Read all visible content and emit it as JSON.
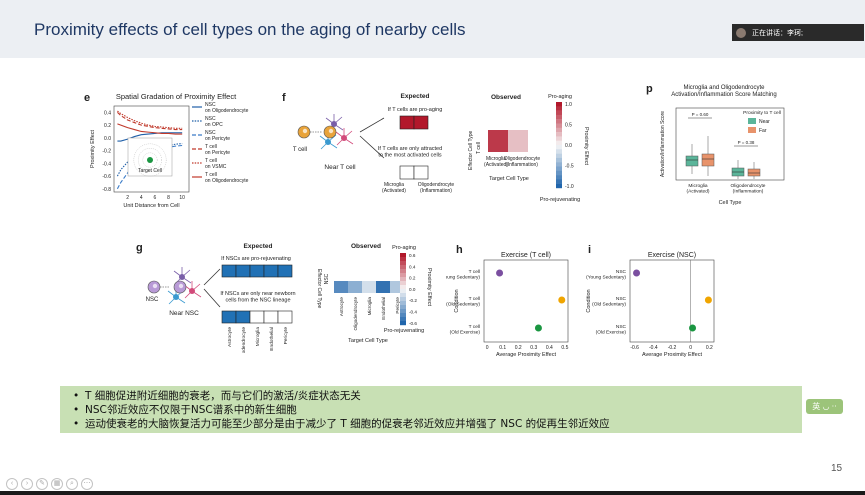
{
  "slide": {
    "title": "Proximity effects of cell types on the aging of nearby cells",
    "page": "15"
  },
  "speaker": {
    "label": "正在讲话：李珂;"
  },
  "bullets": [
    "T 细胞促进附近细胞的衰老，而与它们的激活/炎症状态无关",
    "NSC邻近效应不仅限于NSC谱系中的新生细胞",
    "运动使衰老的大脑恢复活力可能至少部分是由于减少了 T 细胞的促衰老邻近效应并增强了 NSC 的促再生邻近效应"
  ],
  "colors": {
    "pro_aging": "#b2182b",
    "pro_rejuvenating": "#2166ac",
    "exercise_young": "#7b4fa0",
    "exercise_old_sed": "#f0a500",
    "exercise_old_ex": "#1a9641",
    "near": "#5bb59a",
    "far": "#e8936b"
  },
  "panels": {
    "e": {
      "letter": "e",
      "title": "Spatial Gradation of Proximity Effect",
      "xlabel": "Unit Distance from Cell",
      "ylabel": "Proximity Effect",
      "inset_label": "Target Cell",
      "legend": [
        "NSC\non Oligodendrocyte",
        "NSC\non OPC",
        "NSC\non Pericyte",
        "T cell\non Pericyte",
        "T cell\non VSMC",
        "T cell\non Oligodendrocyte"
      ],
      "yticks": [
        "0.4",
        "0.2",
        "0.0",
        "-0.2",
        "-0.4",
        "-0.6",
        "-0.8"
      ],
      "xticks": [
        "2",
        "4",
        "6",
        "8",
        "10"
      ]
    },
    "f": {
      "letter": "f",
      "near_label": "Near T cell",
      "cell_label": "T cell",
      "expected_title": "Expected",
      "expected_a": "If T cells are pro-aging",
      "expected_b": "If T cells are only attracted\nto the most activated cells",
      "col_labels": [
        "Microglia\n(Activated)",
        "Oligodendrocyte\n(Inflammation)"
      ],
      "observed_title": "Observed",
      "observed_row": "T cell",
      "observed_ylabel": "Effector Cell Type",
      "observed_xlabel": "Target Cell Type",
      "obs_cols": [
        "Microglia\n(Activated)",
        "Oligodendrocyte\n(Inflammation)"
      ],
      "cbar_top": "Pro-aging",
      "cbar_bottom": "Pro-rejuvenating",
      "cbar_label": "Proximity Effect",
      "cbar_ticks": [
        "1.0",
        "0.5",
        "0.0",
        "-0.5",
        "-1.0"
      ]
    },
    "g": {
      "letter": "g",
      "near_label": "Near NSC",
      "cell_label": "NSC",
      "expected_title": "Expected",
      "expected_a": "If NSCs are pro-rejuvenating",
      "expected_b": "If NSCs are only near newborn\ncells from the NSC lineage",
      "col_labels": [
        "Astrocyte",
        "Oligodendrocyte",
        "Microglia",
        "Endothelial",
        "Pericyte"
      ],
      "observed_title": "Observed",
      "observed_row": "NSC",
      "observed_ylabel": "Effector Cell Type",
      "observed_xlabel": "Target Cell Type",
      "obs_cols": [
        "Astrocyte",
        "Oligodendrocyte",
        "Microglia",
        "Endothelial",
        "Pericyte"
      ],
      "cbar_top": "Pro-aging",
      "cbar_bottom": "Pro-rejuvenating",
      "cbar_label": "Proximity Effect",
      "cbar_ticks": [
        "0.6",
        "0.4",
        "0.2",
        "0.0",
        "-0.2",
        "-0.4",
        "-0.6"
      ]
    },
    "h": {
      "letter": "h",
      "title": "Exercise (T cell)",
      "xlabel": "Average Proximity Effect",
      "ylabel": "Condition",
      "rows": [
        "T cell\n(Young Sedentary)",
        "T cell\n(Old Sedentary)",
        "T cell\n(Old Exercise)"
      ],
      "xticks": [
        "0",
        "0.1",
        "0.2",
        "0.3",
        "0.4",
        "0.5"
      ]
    },
    "i": {
      "letter": "i",
      "title": "Exercise (NSC)",
      "xlabel": "Average Proximity Effect",
      "ylabel": "Condition",
      "rows": [
        "NSC\n(Young Sedentary)",
        "NSC\n(Old Sedentary)",
        "NSC\n(Old Exercise)"
      ],
      "xticks": [
        "-0.6",
        "-0.4",
        "-0.2",
        "0",
        "0.2"
      ]
    },
    "p": {
      "letter": "p",
      "title": "Microglia and Oligodendrocyte\nActivation/Inflammation Score Matching",
      "ylabel": "Activation/Inflammation Score",
      "xlabel": "Cell Type",
      "legend_title": "Proximity to T cell",
      "legend": [
        "Near",
        "Far"
      ],
      "groups": [
        "Microglia\n(Activated)",
        "Oligodendrocyte\n(Inflammation)"
      ],
      "pvals": [
        "P = 0.60",
        "P = 0.38"
      ]
    }
  },
  "chart_data": [
    {
      "panel": "e",
      "type": "line",
      "title": "Spatial Gradation of Proximity Effect",
      "xlabel": "Unit Distance from Cell",
      "ylabel": "Proximity Effect",
      "xlim": [
        0,
        11
      ],
      "ylim": [
        -0.85,
        0.5
      ],
      "x": [
        0.5,
        1,
        2,
        3,
        4,
        5,
        6,
        7,
        8,
        9,
        10
      ],
      "series": [
        {
          "name": "NSC on Oligodendrocyte",
          "values": [
            -0.05,
            -0.05,
            -0.02,
            0.02,
            0.05,
            0.06,
            0.07,
            0.08,
            0.08,
            0.08,
            0.08
          ]
        },
        {
          "name": "NSC on OPC",
          "values": [
            -0.6,
            -0.5,
            -0.38,
            -0.3,
            -0.25,
            -0.2,
            -0.17,
            -0.14,
            -0.12,
            -0.1,
            -0.09
          ]
        },
        {
          "name": "NSC on Pericyte",
          "values": [
            -0.8,
            -0.7,
            -0.55,
            -0.42,
            -0.33,
            -0.27,
            -0.22,
            -0.18,
            -0.15,
            -0.13,
            -0.12
          ]
        },
        {
          "name": "T cell on Pericyte",
          "values": [
            0.4,
            0.35,
            0.28,
            0.24,
            0.2,
            0.18,
            0.16,
            0.15,
            0.14,
            0.13,
            0.13
          ]
        },
        {
          "name": "T cell on VSMC",
          "values": [
            0.42,
            0.38,
            0.32,
            0.27,
            0.23,
            0.2,
            0.18,
            0.17,
            0.16,
            0.15,
            0.15
          ]
        },
        {
          "name": "T cell on Oligodendrocyte",
          "values": [
            0.22,
            0.2,
            0.16,
            0.13,
            0.1,
            0.09,
            0.08,
            0.07,
            0.07,
            0.06,
            0.06
          ]
        }
      ]
    },
    {
      "panel": "h",
      "type": "scatter",
      "title": "Exercise (T cell)",
      "xlabel": "Average Proximity Effect",
      "ylabel": "Condition",
      "xlim": [
        -0.02,
        0.52
      ],
      "categories": [
        "T cell\n(Young Sedentary)",
        "T cell\n(Old Sedentary)",
        "T cell\n(Old Exercise)"
      ],
      "values": [
        0.08,
        0.48,
        0.33
      ]
    },
    {
      "panel": "i",
      "type": "scatter",
      "title": "Exercise (NSC)",
      "xlabel": "Average Proximity Effect",
      "ylabel": "Condition",
      "xlim": [
        -0.65,
        0.25
      ],
      "categories": [
        "NSC\n(Young Sedentary)",
        "NSC\n(Old Sedentary)",
        "NSC\n(Old Exercise)"
      ],
      "values": [
        -0.58,
        0.19,
        0.02
      ]
    },
    {
      "panel": "f-observed",
      "type": "heatmap",
      "rows": [
        "T cell"
      ],
      "columns": [
        "Microglia\n(Activated)",
        "Oligodendrocyte\n(Inflammation)"
      ],
      "values": [
        [
          0.85,
          0.25
        ]
      ],
      "clim": [
        -1.0,
        1.0
      ]
    },
    {
      "panel": "g-observed",
      "type": "heatmap",
      "rows": [
        "NSC"
      ],
      "columns": [
        "Astrocyte",
        "Oligodendrocyte",
        "Microglia",
        "Endothelial",
        "Pericyte"
      ],
      "values": [
        [
          -0.45,
          -0.3,
          -0.1,
          -0.55,
          -0.2
        ]
      ],
      "clim": [
        -0.6,
        0.6
      ]
    }
  ]
}
